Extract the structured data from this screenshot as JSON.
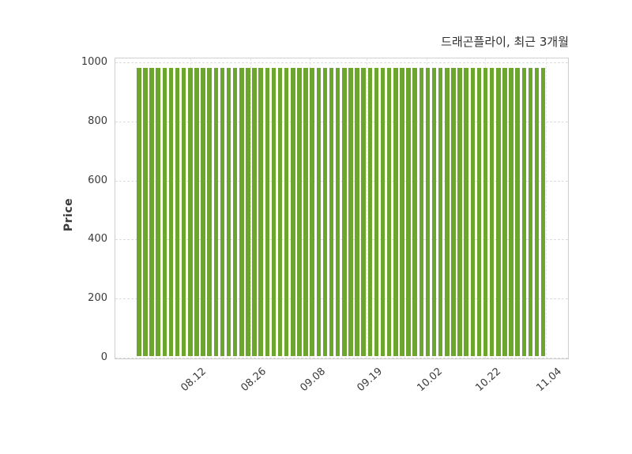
{
  "chart_data": {
    "type": "bar",
    "title": "드래곤플라이, 최근 3개월",
    "xlabel": "",
    "ylabel": "Price",
    "ylim": [
      0,
      1000
    ],
    "yticks": [
      0,
      200,
      400,
      600,
      800,
      1000
    ],
    "xticklabels": [
      "08.12",
      "08.26",
      "09.08",
      "09.19",
      "10.02",
      "10.22",
      "11.04"
    ],
    "xtick_positions": [
      0.131,
      0.276,
      0.421,
      0.56,
      0.705,
      0.849,
      0.996
    ],
    "grid": "dashed",
    "legend": "none",
    "bar_color": "#6CA62C",
    "bar_count": 64,
    "values": [
      975,
      975,
      975,
      975,
      975,
      975,
      975,
      975,
      975,
      975,
      975,
      975,
      975,
      975,
      975,
      975,
      975,
      975,
      975,
      975,
      975,
      975,
      975,
      975,
      975,
      975,
      975,
      975,
      975,
      975,
      975,
      975,
      975,
      975,
      975,
      975,
      975,
      975,
      975,
      975,
      975,
      975,
      975,
      975,
      975,
      975,
      975,
      975,
      975,
      975,
      975,
      975,
      975,
      975,
      975,
      975,
      975,
      975,
      975,
      975,
      975,
      975,
      975,
      975
    ]
  }
}
